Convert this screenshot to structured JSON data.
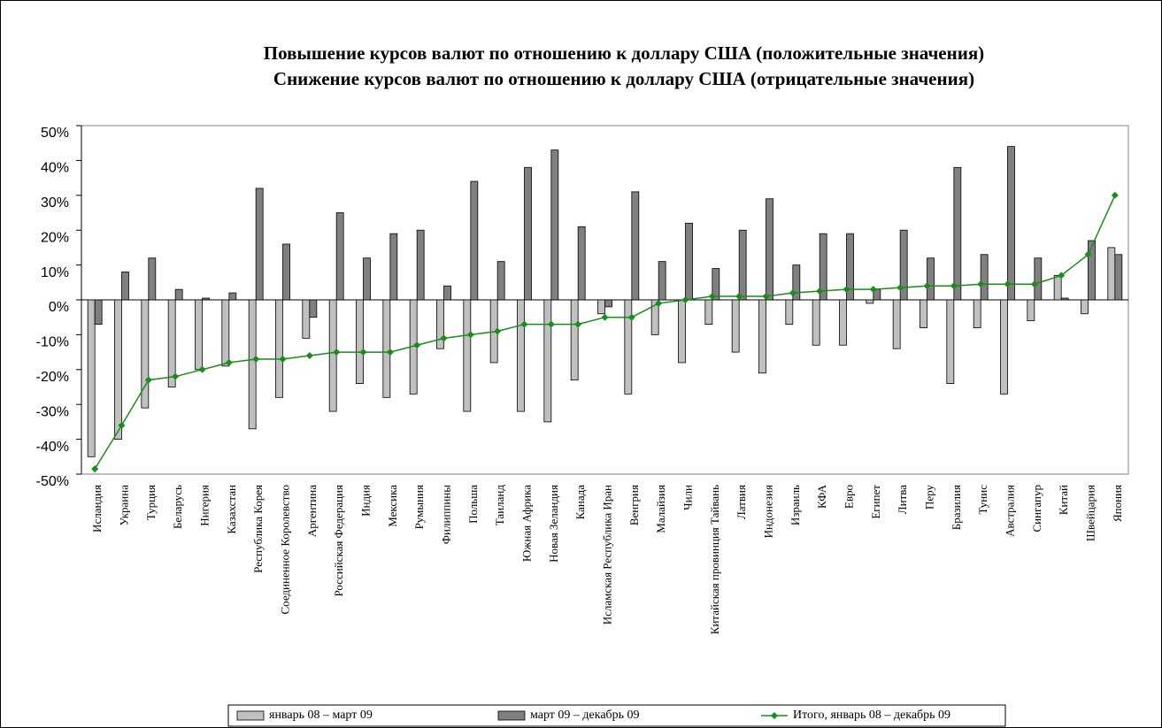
{
  "chart_data": {
    "type": "bar",
    "title": "Повышение курсов валют по отношению к доллару США (положительные значения)",
    "subtitle": "Снижение курсов валют по отношению к доллару США (отрицательные значения)",
    "categories": [
      "Исландия",
      "Украина",
      "Турция",
      "Беларусь",
      "Нигерия",
      "Казахстан",
      "Республика Корея",
      "Соединенное Королевство",
      "Аргентина",
      "Российская Федерация",
      "Индия",
      "Мексика",
      "Румыния",
      "Филиппины",
      "Польша",
      "Таиланд",
      "Южная Африка",
      "Новая Зеландия",
      "Канада",
      "Исламская Республика Иран",
      "Венгрия",
      "Малайзия",
      "Чили",
      "Китайская провинция Тайвань",
      "Латвия",
      "Индонезия",
      "Израиль",
      "КФА",
      "Евро",
      "Египет",
      "Литва",
      "Перу",
      "Бразилия",
      "Тунис",
      "Австралия",
      "Сингапур",
      "Китай",
      "Швейцария",
      "Япония"
    ],
    "series": [
      {
        "name": "январь 08 – март 09",
        "color": "#c0c0c0",
        "type": "bar",
        "values": [
          -45,
          -40,
          -31,
          -25,
          -20,
          -19,
          -37,
          -28,
          -11,
          -32,
          -24,
          -28,
          -27,
          -14,
          -32,
          -18,
          -32,
          -35,
          -23,
          -4,
          -27,
          -10,
          -18,
          -7,
          -15,
          -21,
          -7,
          -13,
          -13,
          -1,
          -14,
          -8,
          -24,
          -8,
          -27,
          -6,
          7,
          -4,
          15
        ]
      },
      {
        "name": "март 09 – декабрь 09",
        "color": "#808080",
        "type": "bar",
        "values": [
          -7,
          8,
          12,
          3,
          0.5,
          2,
          32,
          16,
          -5,
          25,
          12,
          19,
          20,
          4,
          34,
          11,
          38,
          43,
          21,
          -2,
          31,
          11,
          22,
          9,
          20,
          29,
          10,
          19,
          19,
          3,
          20,
          12,
          38,
          13,
          44,
          12,
          0.5,
          17,
          13
        ]
      },
      {
        "name": "Итого, январь 08 – декабрь 09",
        "color": "#1a8c1a",
        "type": "line",
        "values": [
          -48.5,
          -36,
          -23,
          -22,
          -20,
          -18,
          -17,
          -17,
          -16,
          -15,
          -15,
          -15,
          -13,
          -11,
          -10,
          -9,
          -7,
          -7,
          -7,
          -5,
          -5,
          -1,
          0,
          1,
          1,
          1,
          2,
          2.5,
          3,
          3,
          3.5,
          4,
          4,
          4.5,
          4.5,
          4.5,
          7,
          13,
          30
        ]
      }
    ],
    "ylim": [
      -50,
      50
    ],
    "yticks": [
      {
        "value": -50,
        "label": "-50%"
      },
      {
        "value": -40,
        "label": "-40%"
      },
      {
        "value": -30,
        "label": "-30%"
      },
      {
        "value": -20,
        "label": "-20%"
      },
      {
        "value": -10,
        "label": "-10%"
      },
      {
        "value": 0,
        "label": "0%"
      },
      {
        "value": 10,
        "label": "10%"
      },
      {
        "value": 20,
        "label": "20%"
      },
      {
        "value": 30,
        "label": "30%"
      },
      {
        "value": 40,
        "label": "40%"
      },
      {
        "value": 50,
        "label": "50%"
      }
    ],
    "grid": false,
    "legend": "bottom"
  }
}
